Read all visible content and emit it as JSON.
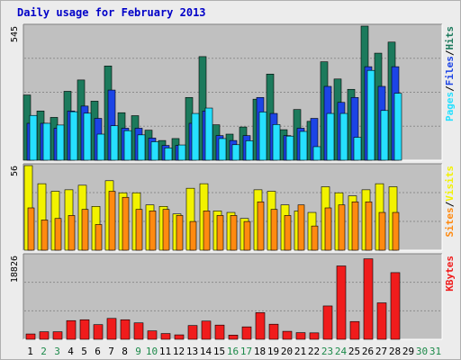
{
  "title": "Daily usage for February 2013",
  "colors": {
    "hits": "#1c7a5c",
    "files": "#1c44e6",
    "pages": "#26e0ff",
    "visits": "#f2f200",
    "sites": "#ff8a10",
    "kbytes": "#f01c1c",
    "panel_bg": "#c0c0c0",
    "frame_bg": "#ececec",
    "title": "#0000c8",
    "weekday_label": "#000000",
    "weekend_label": "#1c8a4a"
  },
  "chart_data": [
    {
      "type": "bar",
      "panel": "hits-files-pages",
      "ylim": [
        0,
        545
      ],
      "ytick_label": "545",
      "right_label_parts": [
        "Pages",
        "/",
        "Files",
        "/",
        "Hits"
      ],
      "categories": [
        "1",
        "2",
        "3",
        "4",
        "5",
        "6",
        "7",
        "8",
        "9",
        "10",
        "11",
        "12",
        "13",
        "14",
        "15",
        "16",
        "17",
        "18",
        "19",
        "20",
        "21",
        "22",
        "23",
        "24",
        "25",
        "26",
        "27",
        "28",
        "29",
        "30",
        "31"
      ],
      "series": [
        {
          "name": "Hits",
          "values": [
            265,
            200,
            174,
            280,
            326,
            240,
            383,
            193,
            181,
            122,
            80,
            88,
            255,
            421,
            144,
            106,
            135,
            248,
            350,
            124,
            206,
            158,
            400,
            330,
            288,
            545,
            435,
            480,
            0,
            0,
            0
          ]
        },
        {
          "name": "Files",
          "values": [
            150,
            150,
            130,
            200,
            220,
            170,
            285,
            130,
            130,
            90,
            60,
            60,
            150,
            200,
            100,
            80,
            100,
            255,
            190,
            100,
            130,
            170,
            300,
            235,
            255,
            380,
            300,
            380,
            0,
            0,
            0
          ]
        },
        {
          "name": "Pages",
          "values": [
            182,
            150,
            143,
            197,
            191,
            106,
            140,
            120,
            103,
            75,
            50,
            62,
            190,
            212,
            88,
            63,
            79,
            196,
            145,
            98,
            117,
            55,
            190,
            190,
            93,
            365,
            202,
            272,
            0,
            0,
            0
          ]
        }
      ]
    },
    {
      "type": "bar",
      "panel": "visits-sites",
      "ylim": [
        0,
        56
      ],
      "ytick_label": "56",
      "right_label_parts": [
        "Sites",
        "/",
        "Visits"
      ],
      "categories": [
        "1",
        "2",
        "3",
        "4",
        "5",
        "6",
        "7",
        "8",
        "9",
        "10",
        "11",
        "12",
        "13",
        "14",
        "15",
        "16",
        "17",
        "18",
        "19",
        "20",
        "21",
        "22",
        "23",
        "24",
        "25",
        "26",
        "27",
        "28",
        "29",
        "30",
        "31"
      ],
      "series": [
        {
          "name": "Visits",
          "values": [
            56,
            44,
            39,
            40,
            43,
            29,
            46,
            38,
            38,
            30,
            29,
            24,
            41,
            44,
            26,
            25,
            21,
            40,
            39,
            30,
            26,
            25,
            42,
            38,
            36,
            40,
            44,
            42,
            0,
            0,
            0
          ]
        },
        {
          "name": "Sites",
          "values": [
            28,
            20,
            21,
            23,
            27,
            17,
            39,
            35,
            27,
            26,
            27,
            23,
            19,
            26,
            23,
            23,
            19,
            32,
            27,
            23,
            30,
            16,
            28,
            30,
            32,
            32,
            25,
            25,
            0,
            0,
            0
          ]
        }
      ]
    },
    {
      "type": "bar",
      "panel": "kbytes",
      "ylim": [
        0,
        18826
      ],
      "ytick_label": "18826",
      "right_label_parts": [
        "KBytes"
      ],
      "categories": [
        "1",
        "2",
        "3",
        "4",
        "5",
        "6",
        "7",
        "8",
        "9",
        "10",
        "11",
        "12",
        "13",
        "14",
        "15",
        "16",
        "17",
        "18",
        "19",
        "20",
        "21",
        "22",
        "23",
        "24",
        "25",
        "26",
        "27",
        "28",
        "29",
        "30",
        "31"
      ],
      "series": [
        {
          "name": "KBytes",
          "values": [
            1200,
            1700,
            1700,
            4200,
            4400,
            3300,
            4700,
            4400,
            3700,
            1900,
            1300,
            1000,
            3100,
            4100,
            3200,
            950,
            2800,
            6000,
            3400,
            1800,
            1500,
            1450,
            7500,
            16500,
            4000,
            18100,
            8200,
            15000,
            0,
            0,
            0
          ]
        }
      ]
    }
  ],
  "x_axis": {
    "days": [
      "1",
      "2",
      "3",
      "4",
      "5",
      "6",
      "7",
      "8",
      "9",
      "10",
      "11",
      "12",
      "13",
      "14",
      "15",
      "16",
      "17",
      "18",
      "19",
      "20",
      "21",
      "22",
      "23",
      "24",
      "25",
      "26",
      "27",
      "28",
      "29",
      "30",
      "31"
    ],
    "weekend_days": [
      "2",
      "3",
      "9",
      "10",
      "16",
      "17",
      "23",
      "24",
      "30",
      "31"
    ]
  }
}
